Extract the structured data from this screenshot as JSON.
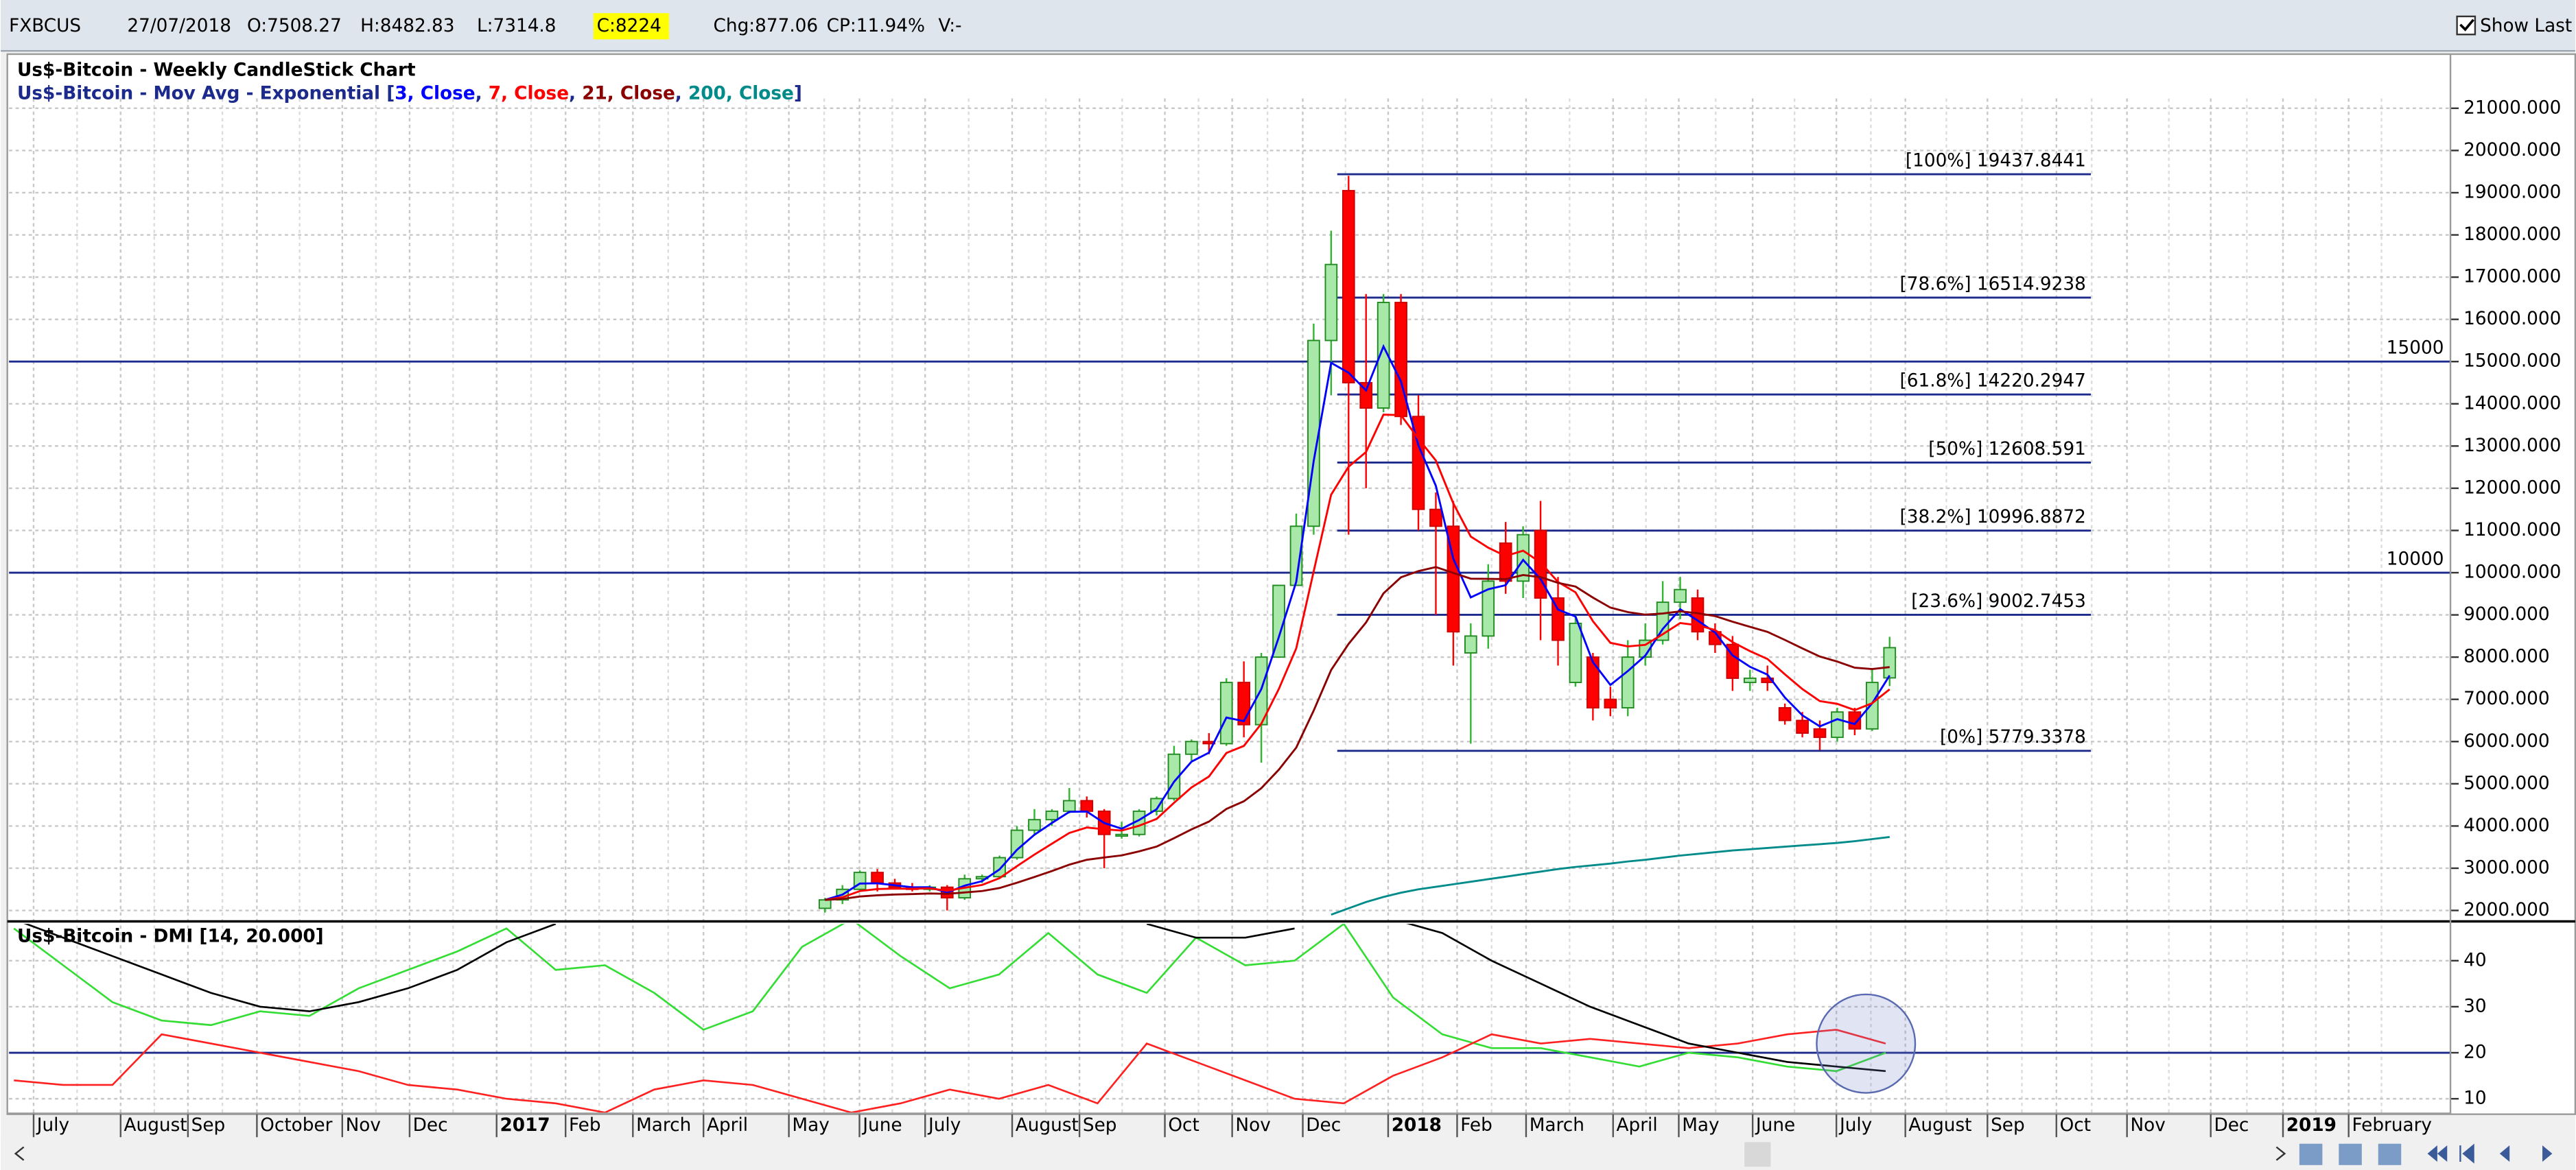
{
  "header": {
    "symbol": "FXBCUS",
    "date": "27/07/2018",
    "open": "O:7508.27",
    "high": "H:8482.83",
    "low": "L:7314.8",
    "close": "C:8224",
    "change": "Chg:877.06",
    "change_pct": "CP:11.94%",
    "volume": "V:-",
    "show_last": "Show Last"
  },
  "chart_data": [
    {
      "type": "candlestick",
      "title": "Us$-Bitcoin - Weekly CandleStick Chart",
      "subtitle_prefix": "Us$-Bitcoin - Mov Avg - Exponential [",
      "separator": ", ",
      "subtitle_suffix": "]",
      "up_color": "#2fb52f",
      "down_color": "#ff0000",
      "open": [
        2050,
        2250,
        2500,
        2900,
        2650,
        2550,
        2500,
        2550,
        2300,
        2750,
        2800,
        3250,
        3900,
        4150,
        4350,
        4600,
        4350,
        3800,
        3800,
        4350,
        4650,
        5700,
        6000,
        5950,
        7400,
        6400,
        8000,
        9700,
        11100,
        15500,
        19050,
        14500,
        13900,
        16400,
        13700,
        11500,
        11100,
        8100,
        8500,
        10700,
        9800,
        11000,
        9400,
        7400,
        8000,
        7000,
        6800,
        8000,
        8400,
        9300,
        9400,
        8600,
        8300,
        7400,
        7500,
        6800,
        6500,
        6300,
        6100,
        6700,
        6300,
        7508.27
      ],
      "high": [
        2300,
        2600,
        2950,
        2980,
        2750,
        2650,
        2600,
        2600,
        2850,
        2850,
        3300,
        4000,
        4400,
        4400,
        4900,
        4700,
        4400,
        4100,
        4400,
        4700,
        5900,
        6050,
        6200,
        7500,
        7900,
        8100,
        9700,
        11400,
        15900,
        18100,
        19400,
        16600,
        16600,
        16600,
        14200,
        11900,
        11700,
        8800,
        10200,
        11200,
        11100,
        11700,
        9900,
        9000,
        8100,
        7300,
        8400,
        8800,
        9800,
        9900,
        9600,
        8800,
        8500,
        7700,
        7800,
        6900,
        6700,
        6500,
        6800,
        6800,
        7700,
        8482.83
      ],
      "low": [
        1950,
        2150,
        2450,
        2450,
        2500,
        2450,
        2450,
        2000,
        2250,
        2650,
        2750,
        3200,
        3800,
        4000,
        4300,
        4200,
        3000,
        3700,
        3750,
        4250,
        4600,
        5550,
        5700,
        5900,
        6100,
        5500,
        8000,
        9700,
        10900,
        14200,
        10900,
        12000,
        13800,
        13500,
        11000,
        9000,
        7800,
        5950,
        8200,
        9500,
        9400,
        8400,
        7800,
        7300,
        6500,
        6600,
        6600,
        7800,
        8300,
        8900,
        8400,
        8100,
        7200,
        7200,
        7200,
        6400,
        6100,
        5800,
        6000,
        6150,
        6250,
        7314.8
      ],
      "close": [
        2250,
        2500,
        2900,
        2650,
        2550,
        2500,
        2550,
        2300,
        2750,
        2800,
        3250,
        3900,
        4150,
        4350,
        4600,
        4350,
        3800,
        3800,
        4350,
        4650,
        5700,
        6000,
        5950,
        7400,
        6400,
        8000,
        9700,
        11100,
        15500,
        17300,
        14500,
        13900,
        16400,
        13700,
        11500,
        11100,
        8600,
        8500,
        9800,
        9800,
        10900,
        9400,
        8400,
        8800,
        6800,
        6800,
        8000,
        8400,
        9300,
        9600,
        8600,
        8300,
        7500,
        7500,
        7400,
        6500,
        6200,
        6100,
        6700,
        6300,
        7400,
        8224
      ],
      "series": [
        {
          "name": "3, Close",
          "color": "#0000ff"
        },
        {
          "name": "7, Close",
          "color": "#ff0000"
        },
        {
          "name": "21, Close",
          "color": "#8b0000"
        },
        {
          "name": "200, Close",
          "color": "#008b8b",
          "values": [
            null,
            null,
            null,
            null,
            null,
            null,
            null,
            null,
            null,
            null,
            null,
            null,
            null,
            null,
            null,
            null,
            null,
            null,
            null,
            null,
            null,
            null,
            null,
            null,
            null,
            null,
            null,
            null,
            null,
            1900,
            2050,
            2200,
            2320,
            2420,
            2500,
            2560,
            2620,
            2680,
            2740,
            2800,
            2860,
            2920,
            2980,
            3030,
            3070,
            3110,
            3160,
            3200,
            3250,
            3300,
            3340,
            3380,
            3420,
            3450,
            3480,
            3510,
            3540,
            3570,
            3600,
            3640,
            3690,
            3740
          ]
        }
      ],
      "ylim": [
        1760,
        21310
      ],
      "yticks": [
        {
          "value": 2000,
          "label": "2000.000"
        },
        {
          "value": 3000,
          "label": "3000.000"
        },
        {
          "value": 4000,
          "label": "4000.000"
        },
        {
          "value": 5000,
          "label": "5000.000"
        },
        {
          "value": 6000,
          "label": "6000.000"
        },
        {
          "value": 7000,
          "label": "7000.000"
        },
        {
          "value": 8000,
          "label": "8000.000"
        },
        {
          "value": 9000,
          "label": "9000.000"
        },
        {
          "value": 10000,
          "label": "10000.000"
        },
        {
          "value": 11000,
          "label": "11000.000"
        },
        {
          "value": 12000,
          "label": "12000.000"
        },
        {
          "value": 13000,
          "label": "13000.000"
        },
        {
          "value": 14000,
          "label": "14000.000"
        },
        {
          "value": 15000,
          "label": "15000.000"
        },
        {
          "value": 16000,
          "label": "16000.000"
        },
        {
          "value": 17000,
          "label": "17000.000"
        },
        {
          "value": 18000,
          "label": "18000.000"
        },
        {
          "value": 19000,
          "label": "19000.000"
        },
        {
          "value": 20000,
          "label": "20000.000"
        },
        {
          "value": 21000,
          "label": "21000.000"
        }
      ],
      "hlines": [
        15000,
        10000
      ],
      "fib_levels": [
        {
          "value": 19437.8441,
          "label": "[100%] 19437.8441"
        },
        {
          "value": 16514.9238,
          "label": "[78.6%] 16514.9238"
        },
        {
          "value": 14220.2947,
          "label": "[61.8%] 14220.2947"
        },
        {
          "value": 12608.591,
          "label": "[50%] 12608.591"
        },
        {
          "value": 10996.8872,
          "label": "[38.2%] 10996.8872"
        },
        {
          "value": 9002.7453,
          "label": "[23.6%] 9002.7453"
        },
        {
          "value": 5779.3378,
          "label": "[0%] 5779.3378"
        }
      ],
      "grid": true
    },
    {
      "type": "line",
      "title": "Us$-Bitcoin - DMI [14, 20.000]",
      "series": [
        {
          "color": "#33dd33",
          "values": [
            47,
            39,
            31,
            27,
            26,
            29,
            28,
            34,
            38,
            42,
            47,
            38,
            39,
            33,
            25,
            29,
            43,
            49,
            41,
            34,
            37,
            46,
            37,
            33,
            45,
            39,
            40,
            48,
            32,
            24,
            21,
            21,
            19,
            17,
            20,
            19,
            17,
            16,
            20
          ]
        },
        {
          "color": "#ff2020",
          "values": [
            14,
            13,
            13,
            24,
            22,
            20,
            18,
            16,
            13,
            12,
            10,
            9,
            7,
            12,
            14,
            13,
            10,
            7,
            9,
            12,
            10,
            13,
            9,
            22,
            18,
            14,
            10,
            9,
            15,
            19,
            24,
            22,
            23,
            22,
            21,
            22,
            24,
            25,
            22
          ]
        },
        {
          "color": "#000000",
          "values": [
            49,
            45,
            41,
            37,
            33,
            30,
            29,
            31,
            34,
            38,
            44,
            48,
            null,
            null,
            null,
            null,
            null,
            null,
            null,
            null,
            null,
            null,
            null,
            48,
            45,
            45,
            47,
            null,
            49,
            46,
            40,
            35,
            30,
            26,
            22,
            20,
            18,
            17,
            16
          ]
        }
      ],
      "ylim": [
        7,
        48
      ],
      "yticks": [
        10,
        20,
        30,
        40
      ],
      "hline": 20,
      "grid": true
    }
  ],
  "x_axis_labels": [
    "July",
    "August",
    "Sep",
    "October",
    "Nov",
    "Dec",
    "2017",
    "Feb",
    "March",
    "April",
    "May",
    "June",
    "July",
    "August",
    "Sep",
    "Oct",
    "Nov",
    "Dec",
    "2018",
    "Feb",
    "March",
    "April",
    "May",
    "June",
    "July",
    "August",
    "Sep",
    "Oct",
    "Nov",
    "Dec",
    "2019",
    "February"
  ]
}
